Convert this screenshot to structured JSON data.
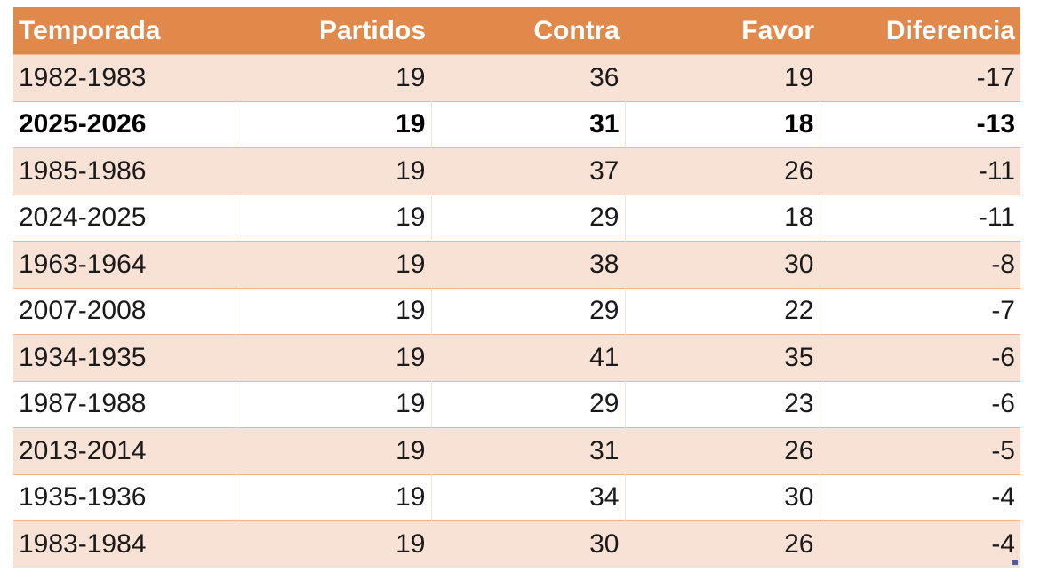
{
  "table": {
    "header": [
      "Temporada",
      "Partidos",
      "Contra",
      "Favor",
      "Diferencia"
    ],
    "rows": [
      [
        "1982-1983",
        19,
        36,
        19,
        -17
      ],
      [
        "2025-2026",
        19,
        31,
        18,
        -13
      ],
      [
        "1985-1986",
        19,
        37,
        26,
        -11
      ],
      [
        "2024-2025",
        19,
        29,
        18,
        -11
      ],
      [
        "1963-1964",
        19,
        38,
        30,
        -8
      ],
      [
        "2007-2008",
        19,
        29,
        22,
        -7
      ],
      [
        "1934-1935",
        19,
        41,
        35,
        -6
      ],
      [
        "1987-1988",
        19,
        29,
        23,
        -6
      ],
      [
        "2013-2014",
        19,
        31,
        26,
        -5
      ],
      [
        "1935-1936",
        19,
        34,
        30,
        -4
      ],
      [
        "1983-1984",
        19,
        30,
        26,
        -4
      ]
    ],
    "bold_rows": [
      1
    ]
  }
}
